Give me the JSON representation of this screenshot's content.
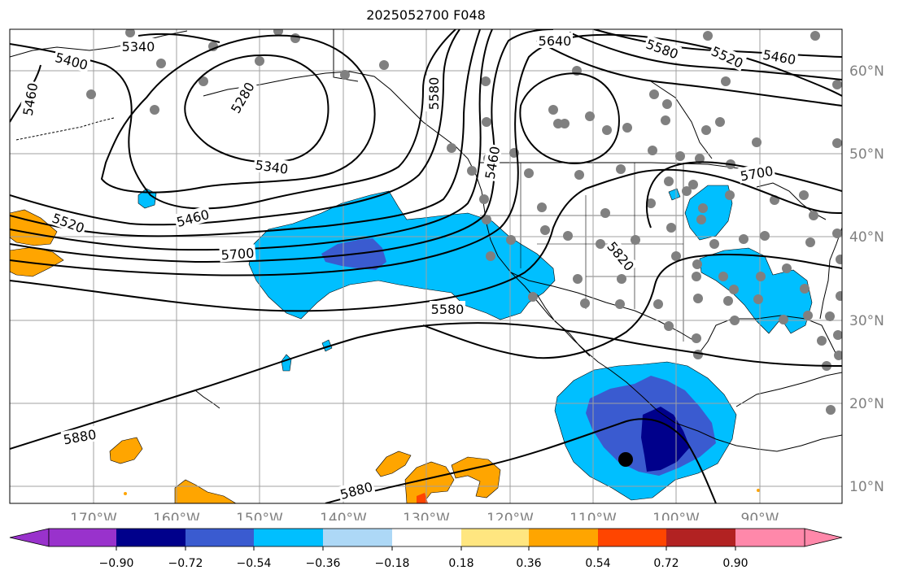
{
  "title": "2025052700 F048",
  "lon_labels": [
    "170°W",
    "160°W",
    "150°W",
    "140°W",
    "130°W",
    "120°W",
    "110°W",
    "100°W",
    "90°W"
  ],
  "lat_labels": [
    "60°N",
    "50°N",
    "40°N",
    "30°N",
    "20°N",
    "10°N"
  ],
  "contour_labels": [
    "5340",
    "5400",
    "5460",
    "5280",
    "5340",
    "5460",
    "5520",
    "5700",
    "5580",
    "5640",
    "5580",
    "5520",
    "5460",
    "5700",
    "5820",
    "5880",
    "5880",
    "5460",
    "5580"
  ],
  "colorbar": {
    "ticks": [
      "−0.90",
      "−0.72",
      "−0.54",
      "−0.36",
      "−0.18",
      "0.18",
      "0.36",
      "0.54",
      "0.72",
      "0.90"
    ],
    "colors": [
      "#9932cc",
      "#00008b",
      "#3a5bd0",
      "#00bfff",
      "#add8f6",
      "#ffffff",
      "#ffe680",
      "#ffa500",
      "#ff4500",
      "#b22222",
      "#ff88aa"
    ]
  },
  "colors": {
    "contour": "#000000",
    "grid": "#a0a0a0",
    "station": "#808080",
    "marker": "#000000"
  }
}
